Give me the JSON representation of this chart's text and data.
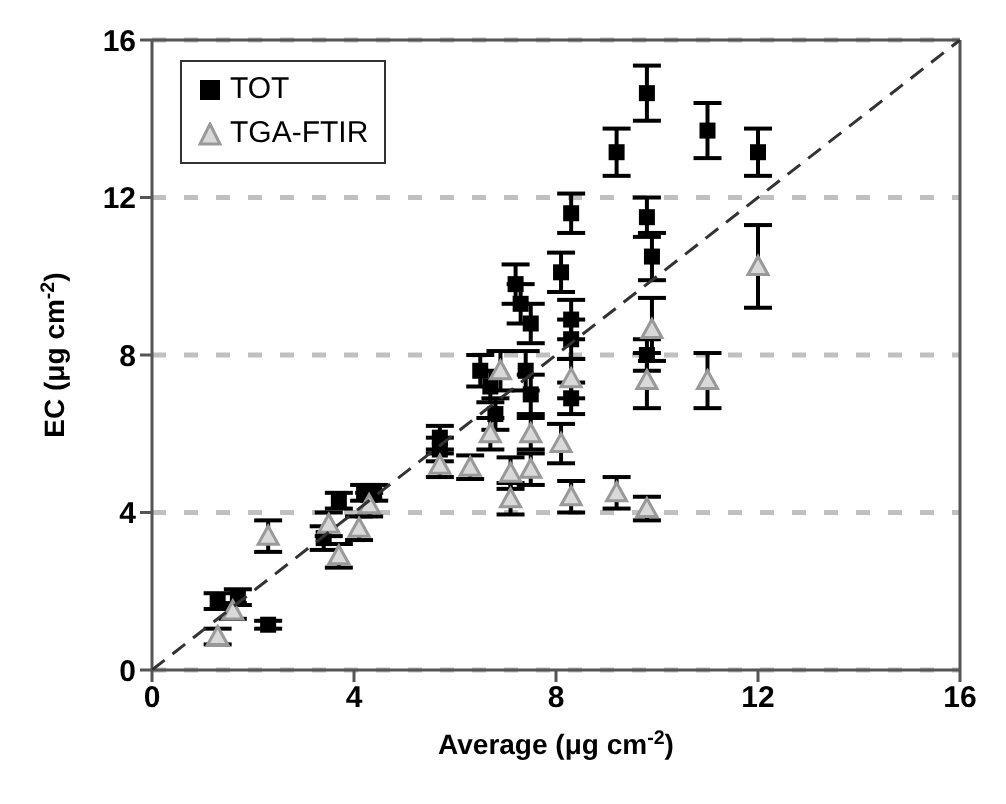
{
  "chart_data": {
    "type": "scatter",
    "xlabel": "Average (μg cm$^{-2}$)",
    "ylabel": "EC (μg cm$^{-2}$)",
    "xlim": [
      0,
      16
    ],
    "ylim": [
      0,
      16
    ],
    "xticks": [
      0,
      4,
      8,
      12,
      16
    ],
    "yticks": [
      0,
      4,
      8,
      12,
      16
    ],
    "grid": "y",
    "legend": "top left",
    "series": [
      {
        "name": "TOT",
        "color": "#000000",
        "marker": "square",
        "x": [
          1.3,
          1.7,
          2.3,
          3.4,
          3.7,
          4.2,
          4.4,
          5.7,
          5.7,
          6.5,
          6.7,
          6.8,
          7.2,
          7.3,
          7.5,
          7.4,
          7.5,
          8.1,
          8.3,
          8.3,
          8.3,
          8.3,
          9.2,
          9.8,
          9.8,
          9.9,
          9.8,
          11.0,
          12.0
        ],
        "values": [
          1.75,
          1.85,
          1.15,
          3.35,
          4.3,
          4.5,
          4.5,
          5.9,
          5.6,
          7.6,
          7.2,
          6.5,
          9.8,
          9.3,
          8.8,
          7.6,
          7.0,
          10.1,
          11.6,
          8.9,
          8.4,
          6.9,
          13.15,
          14.65,
          11.5,
          10.5,
          8.0,
          13.7,
          13.15
        ],
        "errors": [
          0.2,
          0.2,
          0.1,
          0.3,
          0.2,
          0.2,
          0.2,
          0.3,
          0.3,
          0.4,
          0.4,
          0.4,
          0.5,
          0.5,
          0.5,
          0.5,
          0.5,
          0.5,
          0.5,
          0.5,
          0.5,
          0.4,
          0.6,
          0.7,
          0.5,
          0.6,
          0.4,
          0.7,
          0.6
        ]
      },
      {
        "name": "TGA-FTIR",
        "color": "#999999",
        "marker": "triangle",
        "x": [
          1.3,
          1.6,
          2.3,
          3.5,
          3.7,
          4.1,
          4.3,
          5.7,
          6.3,
          6.7,
          6.9,
          7.1,
          7.1,
          7.5,
          7.5,
          8.1,
          8.3,
          8.3,
          9.2,
          9.8,
          9.9,
          9.8,
          11.0,
          12.0
        ],
        "values": [
          0.85,
          1.5,
          3.4,
          3.7,
          2.9,
          3.6,
          4.2,
          5.2,
          5.15,
          6.0,
          7.6,
          5.0,
          4.35,
          6.0,
          5.1,
          5.75,
          7.4,
          4.4,
          4.5,
          4.1,
          8.65,
          7.35,
          7.35,
          10.25
        ],
        "errors": [
          0.2,
          0.2,
          0.4,
          0.3,
          0.3,
          0.3,
          0.3,
          0.3,
          0.3,
          0.4,
          0.5,
          0.4,
          0.4,
          0.4,
          0.4,
          0.5,
          0.5,
          0.4,
          0.4,
          0.3,
          0.8,
          0.7,
          0.7,
          1.05
        ]
      },
      {
        "type": "line",
        "color": "#333333",
        "marker": "none",
        "line_style": "dashed",
        "x": [
          0,
          16
        ],
        "values": [
          0,
          16
        ]
      }
    ]
  }
}
